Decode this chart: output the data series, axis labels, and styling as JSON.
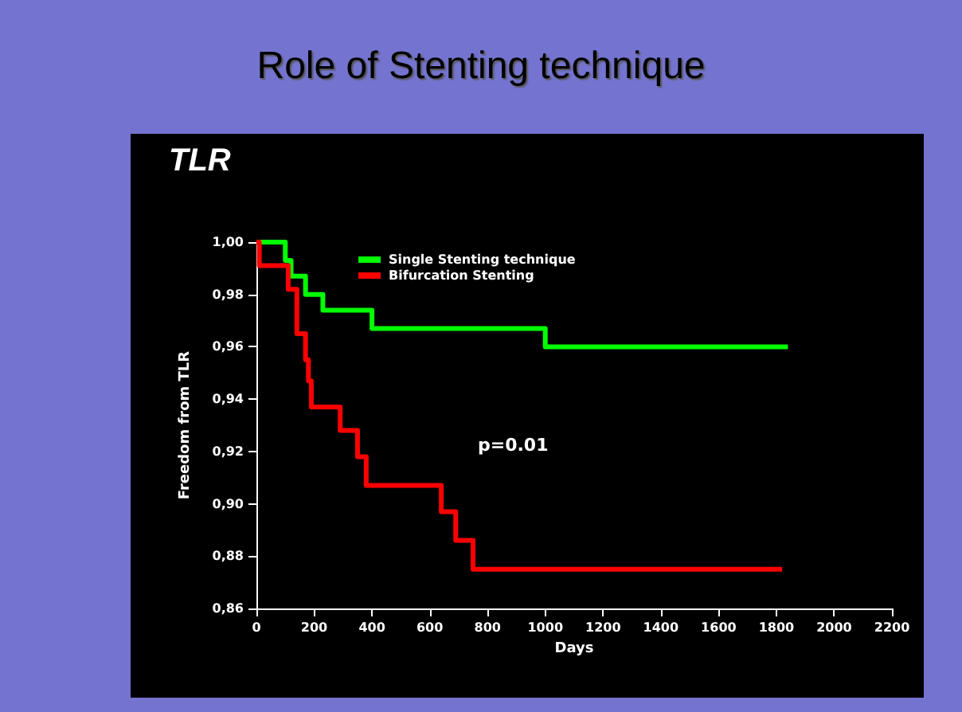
{
  "chart_data": {
    "type": "step",
    "title": "Role of Stenting technique",
    "subtitle": "TLR",
    "xlabel": "Days",
    "ylabel": "Freedom from TLR",
    "annotations": [
      "p=0.01"
    ],
    "series": [
      {
        "name": "Single Stenting technique",
        "color": "#00ff00",
        "x": [
          0,
          100,
          120,
          170,
          230,
          400,
          1000,
          1840
        ],
        "values": [
          1.0,
          0.993,
          0.987,
          0.98,
          0.974,
          0.967,
          0.96,
          0.96
        ]
      },
      {
        "name": "Bifurcation Stenting",
        "color": "#ff0000",
        "x": [
          0,
          10,
          110,
          140,
          170,
          180,
          190,
          290,
          350,
          380,
          640,
          690,
          750,
          1820
        ],
        "values": [
          1.0,
          0.991,
          0.982,
          0.965,
          0.955,
          0.947,
          0.937,
          0.928,
          0.918,
          0.907,
          0.897,
          0.886,
          0.875,
          0.875
        ]
      }
    ],
    "xlim": [
      0,
      2200
    ],
    "xticks": [
      0,
      200,
      400,
      600,
      800,
      1000,
      1200,
      1400,
      1600,
      1800,
      2000,
      2200
    ],
    "ylim": [
      0.86,
      1.0
    ],
    "yticks": [
      {
        "value": 0.86,
        "label": "0,86"
      },
      {
        "value": 0.88,
        "label": "0,88"
      },
      {
        "value": 0.9,
        "label": "0,90"
      },
      {
        "value": 0.92,
        "label": "0,92"
      },
      {
        "value": 0.94,
        "label": "0,94"
      },
      {
        "value": 0.96,
        "label": "0,96"
      },
      {
        "value": 0.98,
        "label": "0,98"
      },
      {
        "value": 1.0,
        "label": "1,00"
      }
    ],
    "grid": false,
    "legend": "top",
    "marker": "none",
    "line_style": "solid"
  }
}
